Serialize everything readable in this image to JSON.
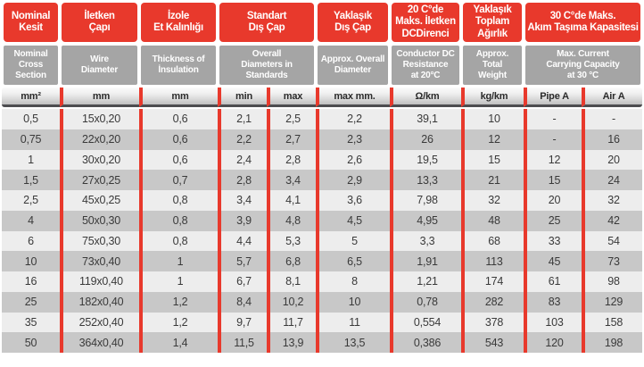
{
  "table": {
    "title": "cable-specification-table",
    "header_groups_tr": [
      {
        "label": "Nominal\nKesit"
      },
      {
        "label": "İletken\nÇapı"
      },
      {
        "label": "İzole\nEt Kalınlığı"
      },
      {
        "label": "Standart\nDış Çap"
      },
      {
        "label": "Yaklaşık\nDış Çap"
      },
      {
        "label": "20 C°de\nMaks. İletken\nDCDirenci"
      },
      {
        "label": "Yaklaşık\nToplam\nAğırlık"
      },
      {
        "label": "30 C°de Maks.\nAkım Taşıma Kapasitesi"
      }
    ],
    "header_groups_en": [
      {
        "label": "Nominal\nCross Section"
      },
      {
        "label": "Wire\nDiameter"
      },
      {
        "label": "Thickness of\nİnsulation"
      },
      {
        "label": "Overall\nDiameters in\nStandards"
      },
      {
        "label": "Approx. Overall\nDiameter"
      },
      {
        "label": "Conductor DC\nResistance\nat 20°C"
      },
      {
        "label": "Approx.\nTotal\nWeight"
      },
      {
        "label": "Max. Current\nCarrying Capacity\nat 30 °C"
      }
    ],
    "units": [
      "mm²",
      "mm",
      "mm",
      "min",
      "max",
      "max mm.",
      "Ω/km",
      "kg/km",
      "Pipe A",
      "Air A"
    ],
    "rows": [
      [
        "0,5",
        "15x0,20",
        "0,6",
        "2,1",
        "2,5",
        "2,2",
        "39,1",
        "10",
        "-",
        "-"
      ],
      [
        "0,75",
        "22x0,20",
        "0,6",
        "2,2",
        "2,7",
        "2,3",
        "26",
        "12",
        "-",
        "16"
      ],
      [
        "1",
        "30x0,20",
        "0,6",
        "2,4",
        "2,8",
        "2,6",
        "19,5",
        "15",
        "12",
        "20"
      ],
      [
        "1,5",
        "27x0,25",
        "0,7",
        "2,8",
        "3,4",
        "2,9",
        "13,3",
        "21",
        "15",
        "24"
      ],
      [
        "2,5",
        "45x0,25",
        "0,8",
        "3,4",
        "4,1",
        "3,6",
        "7,98",
        "32",
        "20",
        "32"
      ],
      [
        "4",
        "50x0,30",
        "0,8",
        "3,9",
        "4,8",
        "4,5",
        "4,95",
        "48",
        "25",
        "42"
      ],
      [
        "6",
        "75x0,30",
        "0,8",
        "4,4",
        "5,3",
        "5",
        "3,3",
        "68",
        "33",
        "54"
      ],
      [
        "10",
        "73x0,40",
        "1",
        "5,7",
        "6,8",
        "6,5",
        "1,91",
        "113",
        "45",
        "73"
      ],
      [
        "16",
        "119x0,40",
        "1",
        "6,7",
        "8,1",
        "8",
        "1,21",
        "174",
        "61",
        "98"
      ],
      [
        "25",
        "182x0,40",
        "1,2",
        "8,4",
        "10,2",
        "10",
        "0,78",
        "282",
        "83",
        "129"
      ],
      [
        "35",
        "252x0,40",
        "1,2",
        "9,7",
        "11,7",
        "11",
        "0,554",
        "378",
        "103",
        "158"
      ],
      [
        "50",
        "364x0,40",
        "1,4",
        "11,5",
        "13,9",
        "13,5",
        "0,386",
        "543",
        "120",
        "198"
      ]
    ]
  },
  "colors": {
    "accent_red": "#e8392c",
    "subheader_gray": "#a5a5a5",
    "row_light": "#ededed",
    "row_dark": "#c8c8c8",
    "units_border_dark": "#4d4d50"
  }
}
